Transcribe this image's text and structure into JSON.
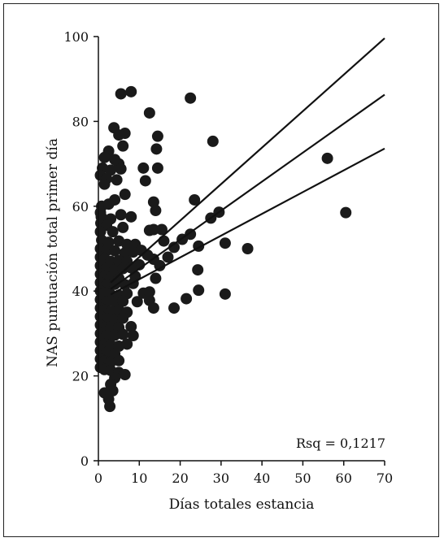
{
  "chart_data": {
    "type": "scatter",
    "xlabel": "Días totales estancia",
    "ylabel": "NAS puntuación total primer día",
    "xlim": [
      0,
      70
    ],
    "ylim": [
      0,
      100
    ],
    "xticks": [
      0,
      10,
      20,
      30,
      40,
      50,
      60,
      70
    ],
    "yticks": [
      0,
      20,
      40,
      60,
      80,
      100
    ],
    "annotation": "Rsq = 0,1217",
    "grid": false,
    "point_color": "#1a1a1a",
    "fit_lines": [
      {
        "x": [
          3,
          70
        ],
        "y": [
          42,
          99.6
        ]
      },
      {
        "x": [
          3,
          70
        ],
        "y": [
          40.5,
          86.3
        ]
      },
      {
        "x": [
          3,
          70
        ],
        "y": [
          39.2,
          73.6
        ]
      }
    ],
    "points": [
      [
        8,
        87
      ],
      [
        5.5,
        86.5
      ],
      [
        22.5,
        85.5
      ],
      [
        12.5,
        82
      ],
      [
        3.8,
        78.5
      ],
      [
        6.5,
        77.2
      ],
      [
        14.5,
        76.5
      ],
      [
        5,
        76.8
      ],
      [
        14.2,
        73.5
      ],
      [
        6,
        74.2
      ],
      [
        2.5,
        73
      ],
      [
        1.5,
        71.5
      ],
      [
        4,
        71
      ],
      [
        5,
        70
      ],
      [
        28,
        75.3
      ],
      [
        56,
        71.3
      ],
      [
        60.5,
        58.5
      ],
      [
        1,
        69
      ],
      [
        3,
        68.5
      ],
      [
        5.5,
        68.8
      ],
      [
        11,
        69
      ],
      [
        14.5,
        69
      ],
      [
        0.5,
        67.3
      ],
      [
        2,
        66.5
      ],
      [
        4.5,
        66.2
      ],
      [
        11.5,
        66
      ],
      [
        1.5,
        65.2
      ],
      [
        6.5,
        62.8
      ],
      [
        4,
        61.5
      ],
      [
        23.5,
        61.5
      ],
      [
        13.5,
        61
      ],
      [
        0.8,
        60
      ],
      [
        2.5,
        60.5
      ],
      [
        14,
        59
      ],
      [
        0.5,
        58.5
      ],
      [
        5.5,
        58
      ],
      [
        29.5,
        58.6
      ],
      [
        27.5,
        57.2
      ],
      [
        0.7,
        57.5
      ],
      [
        3,
        57
      ],
      [
        8,
        57.5
      ],
      [
        0.6,
        56
      ],
      [
        2,
        55.5
      ],
      [
        6,
        55
      ],
      [
        12.5,
        54.3
      ],
      [
        13.5,
        54.5
      ],
      [
        15.5,
        54.5
      ],
      [
        0.5,
        54
      ],
      [
        3.5,
        54
      ],
      [
        22.5,
        53.4
      ],
      [
        20.5,
        52.2
      ],
      [
        16,
        51.8
      ],
      [
        24.5,
        50.6
      ],
      [
        31,
        51.3
      ],
      [
        36.5,
        50
      ],
      [
        0.8,
        52
      ],
      [
        2.5,
        51.5
      ],
      [
        5,
        51.8
      ],
      [
        7,
        51
      ],
      [
        9,
        51
      ],
      [
        0.5,
        50
      ],
      [
        2,
        49.5
      ],
      [
        4,
        49.5
      ],
      [
        6.5,
        49
      ],
      [
        8.5,
        49.2
      ],
      [
        10.5,
        49.6
      ],
      [
        12,
        48.5
      ],
      [
        18.5,
        50.3
      ],
      [
        17,
        48
      ],
      [
        13.5,
        47.5
      ],
      [
        0.5,
        48
      ],
      [
        1.5,
        47.5
      ],
      [
        3,
        47
      ],
      [
        5,
        47.2
      ],
      [
        7,
        47
      ],
      [
        10,
        46.2
      ],
      [
        15,
        46
      ],
      [
        0.5,
        46
      ],
      [
        2,
        45.5
      ],
      [
        4,
        45
      ],
      [
        6,
        45.3
      ],
      [
        8,
        45.5
      ],
      [
        24.3,
        45
      ],
      [
        0.5,
        44
      ],
      [
        1.5,
        43.5
      ],
      [
        3,
        43.2
      ],
      [
        5,
        43
      ],
      [
        9,
        43.5
      ],
      [
        14,
        43
      ],
      [
        0.5,
        42
      ],
      [
        2,
        41.5
      ],
      [
        4,
        41.6
      ],
      [
        6.5,
        41.5
      ],
      [
        8.5,
        41.8
      ],
      [
        0.5,
        40
      ],
      [
        1.5,
        39.5
      ],
      [
        3,
        39.2
      ],
      [
        5,
        39
      ],
      [
        7,
        39.4
      ],
      [
        11,
        39.5
      ],
      [
        12.5,
        39.8
      ],
      [
        24.5,
        40.2
      ],
      [
        31,
        39.3
      ],
      [
        0.5,
        38
      ],
      [
        2,
        37.5
      ],
      [
        4,
        37.5
      ],
      [
        6,
        37.6
      ],
      [
        9.5,
        37.5
      ],
      [
        12.5,
        37.8
      ],
      [
        21.5,
        38.2
      ],
      [
        0.5,
        36
      ],
      [
        1.5,
        35.5
      ],
      [
        3,
        35.2
      ],
      [
        5,
        35.5
      ],
      [
        7,
        35
      ],
      [
        13.5,
        36
      ],
      [
        18.5,
        36
      ],
      [
        0.5,
        34
      ],
      [
        2,
        33.5
      ],
      [
        4,
        33.3
      ],
      [
        6,
        33.6
      ],
      [
        0.5,
        32
      ],
      [
        1.5,
        31.5
      ],
      [
        3,
        31.2
      ],
      [
        5,
        31.4
      ],
      [
        8,
        31.6
      ],
      [
        0.5,
        30
      ],
      [
        2,
        29.5
      ],
      [
        4,
        29.6
      ],
      [
        6,
        29.8
      ],
      [
        8.5,
        29.5
      ],
      [
        0.5,
        28
      ],
      [
        1.5,
        27.5
      ],
      [
        3,
        27.3
      ],
      [
        5,
        27
      ],
      [
        7,
        27.5
      ],
      [
        0.5,
        26
      ],
      [
        2,
        25.5
      ],
      [
        4,
        25.2
      ],
      [
        0.5,
        24
      ],
      [
        1.5,
        23.5
      ],
      [
        3,
        23.2
      ],
      [
        5,
        23.6
      ],
      [
        0.5,
        22
      ],
      [
        1.5,
        21.5
      ],
      [
        3,
        21.3
      ],
      [
        5,
        20.8
      ],
      [
        6.5,
        20.3
      ],
      [
        4,
        19.5
      ],
      [
        3,
        18
      ],
      [
        3.5,
        16.5
      ],
      [
        1.5,
        16
      ],
      [
        2.5,
        14.5
      ],
      [
        2.8,
        12.8
      ]
    ]
  }
}
